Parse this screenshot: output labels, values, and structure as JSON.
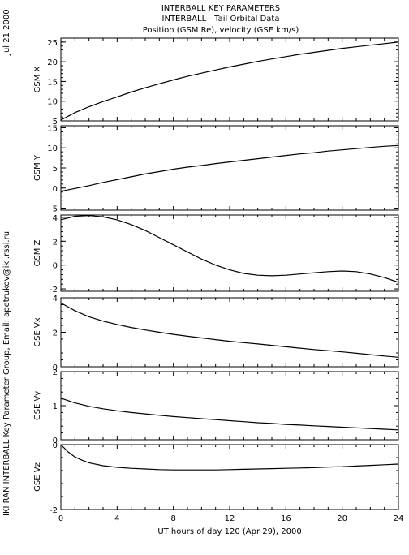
{
  "header": {
    "title_lines": [
      "INTERBALL KEY PARAMETERS",
      "INTERBALL—Tail Orbital Data",
      "Position (GSM Re), velocity (GSE km/s)"
    ],
    "date_stamp": "Jul 21 2000",
    "credit": "IKI RAN INTERBALL Key Parameter Group, Email: apetrukov@iki.rssi.ru"
  },
  "chart_data": [
    {
      "type": "line",
      "ylabel": "GSM X",
      "xlim": [
        0,
        24
      ],
      "ylim": [
        5,
        26
      ],
      "yticks": [
        5,
        10,
        15,
        20,
        25
      ],
      "x": [
        0,
        1,
        2,
        3,
        4,
        5,
        6,
        7,
        8,
        9,
        10,
        11,
        12,
        13,
        14,
        15,
        16,
        17,
        18,
        19,
        20,
        21,
        22,
        23,
        24
      ],
      "y": [
        5.2,
        7.1,
        8.6,
        9.9,
        11.1,
        12.3,
        13.4,
        14.4,
        15.4,
        16.3,
        17.1,
        17.9,
        18.7,
        19.4,
        20.1,
        20.7,
        21.3,
        21.9,
        22.4,
        22.9,
        23.4,
        23.8,
        24.2,
        24.6,
        25.0
      ]
    },
    {
      "type": "line",
      "ylabel": "GSM Y",
      "xlim": [
        0,
        24
      ],
      "ylim": [
        -5.5,
        15.5
      ],
      "yticks": [
        -5,
        0,
        5,
        10,
        15
      ],
      "x": [
        0,
        1,
        2,
        3,
        4,
        5,
        6,
        7,
        8,
        9,
        10,
        11,
        12,
        13,
        14,
        15,
        16,
        17,
        18,
        19,
        20,
        21,
        22,
        23,
        24
      ],
      "y": [
        -0.8,
        -0.1,
        0.6,
        1.4,
        2.1,
        2.8,
        3.5,
        4.1,
        4.7,
        5.2,
        5.6,
        6.1,
        6.5,
        6.9,
        7.3,
        7.7,
        8.1,
        8.5,
        8.8,
        9.2,
        9.5,
        9.8,
        10.1,
        10.4,
        10.6
      ]
    },
    {
      "type": "line",
      "ylabel": "GSM Z",
      "xlim": [
        0,
        24
      ],
      "ylim": [
        -2.2,
        4.2
      ],
      "yticks": [
        -2,
        0,
        2,
        4
      ],
      "x": [
        0,
        1,
        2,
        3,
        4,
        5,
        6,
        7,
        8,
        9,
        10,
        11,
        12,
        13,
        14,
        15,
        16,
        17,
        18,
        19,
        20,
        21,
        22,
        23,
        24
      ],
      "y": [
        3.8,
        4.1,
        4.15,
        4.05,
        3.8,
        3.4,
        2.9,
        2.3,
        1.7,
        1.1,
        0.5,
        0.0,
        -0.4,
        -0.7,
        -0.85,
        -0.9,
        -0.85,
        -0.75,
        -0.65,
        -0.55,
        -0.5,
        -0.55,
        -0.75,
        -1.05,
        -1.45
      ]
    },
    {
      "type": "line",
      "ylabel": "GSE Vx",
      "xlim": [
        0,
        24
      ],
      "ylim": [
        0,
        4
      ],
      "yticks": [
        0,
        2,
        4
      ],
      "x": [
        0,
        1,
        2,
        3,
        4,
        5,
        6,
        7,
        8,
        9,
        10,
        11,
        12,
        13,
        14,
        15,
        16,
        17,
        18,
        19,
        20,
        21,
        22,
        23,
        24
      ],
      "y": [
        3.7,
        3.25,
        2.9,
        2.65,
        2.45,
        2.28,
        2.13,
        2.0,
        1.88,
        1.77,
        1.67,
        1.57,
        1.48,
        1.4,
        1.32,
        1.24,
        1.16,
        1.08,
        1.0,
        0.93,
        0.86,
        0.78,
        0.7,
        0.62,
        0.55
      ]
    },
    {
      "type": "line",
      "ylabel": "GSE Vy",
      "xlim": [
        0,
        24
      ],
      "ylim": [
        0,
        2
      ],
      "yticks": [
        0,
        1,
        2
      ],
      "x": [
        0,
        1,
        2,
        3,
        4,
        5,
        6,
        7,
        8,
        9,
        10,
        11,
        12,
        13,
        14,
        15,
        16,
        17,
        18,
        19,
        20,
        21,
        22,
        23,
        24
      ],
      "y": [
        1.22,
        1.08,
        0.98,
        0.91,
        0.85,
        0.8,
        0.76,
        0.72,
        0.68,
        0.65,
        0.62,
        0.59,
        0.56,
        0.53,
        0.5,
        0.48,
        0.45,
        0.43,
        0.41,
        0.39,
        0.37,
        0.35,
        0.33,
        0.31,
        0.29
      ]
    },
    {
      "type": "line",
      "ylabel": "GSE Vz",
      "xlabel": "UT hours of day 120 (Apr 29), 2000",
      "xlim": [
        0,
        24
      ],
      "xticks": [
        0,
        4,
        8,
        12,
        16,
        20,
        24
      ],
      "ylim": [
        -2,
        0
      ],
      "yticks": [
        -2,
        0
      ],
      "x": [
        0,
        0.5,
        1,
        1.5,
        2,
        3,
        4,
        5,
        6,
        7,
        8,
        9,
        10,
        11,
        12,
        13,
        14,
        15,
        16,
        17,
        18,
        19,
        20,
        21,
        22,
        23,
        24
      ],
      "y": [
        0.0,
        -0.22,
        -0.38,
        -0.48,
        -0.56,
        -0.65,
        -0.7,
        -0.73,
        -0.75,
        -0.77,
        -0.78,
        -0.78,
        -0.78,
        -0.78,
        -0.77,
        -0.76,
        -0.75,
        -0.74,
        -0.73,
        -0.72,
        -0.71,
        -0.69,
        -0.68,
        -0.66,
        -0.64,
        -0.62,
        -0.6
      ]
    }
  ]
}
